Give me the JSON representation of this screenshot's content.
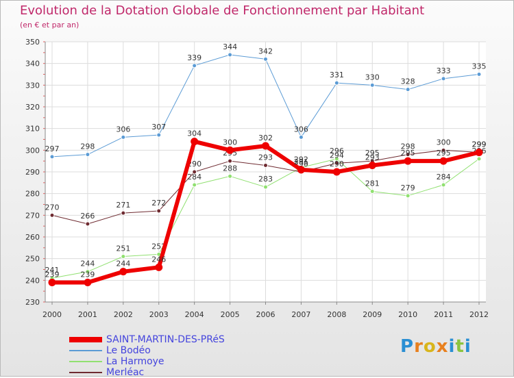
{
  "chart_data": {
    "type": "line",
    "title": "Evolution de la Dotation Globale de Fonctionnement par Habitant",
    "subtitle": "(en € et par an)",
    "xlabel": "",
    "ylabel": "",
    "x": [
      "2000",
      "2001",
      "2002",
      "2003",
      "2004",
      "2005",
      "2006",
      "2007",
      "2008",
      "2009",
      "2010",
      "2011",
      "2012"
    ],
    "ylim": [
      230,
      350
    ],
    "yticks": [
      230,
      240,
      250,
      260,
      270,
      280,
      290,
      300,
      310,
      320,
      330,
      340,
      350
    ],
    "grid": true,
    "legend_position": "bottom-left",
    "series": [
      {
        "name": "Le Bodéo",
        "color": "#5b9bd5",
        "width": 1,
        "values": [
          297,
          298,
          306,
          307,
          339,
          344,
          342,
          306,
          331,
          330,
          328,
          333,
          335
        ]
      },
      {
        "name": "La Harmoye",
        "color": "#90e070",
        "width": 1,
        "values": [
          241,
          244,
          251,
          252,
          284,
          288,
          283,
          292,
          296,
          281,
          279,
          284,
          296
        ]
      },
      {
        "name": "Merléac",
        "color": "#6e2a30",
        "width": 1,
        "values": [
          270,
          266,
          271,
          272,
          290,
          295,
          293,
          290,
          294,
          295,
          298,
          300,
          299
        ]
      },
      {
        "name": "SAINT-MARTIN-DES-PRéS",
        "color": "#ee0000",
        "width": 6,
        "values": [
          239,
          239,
          244,
          246,
          304,
          300,
          302,
          291,
          290,
          293,
          295,
          295,
          299
        ]
      }
    ],
    "legend_order": [
      "SAINT-MARTIN-DES-PRéS",
      "Le Bodéo",
      "La Harmoye",
      "Merléac"
    ]
  },
  "logo": {
    "letters": [
      "P",
      "r",
      "o",
      "x",
      "i",
      "t",
      "i"
    ]
  }
}
